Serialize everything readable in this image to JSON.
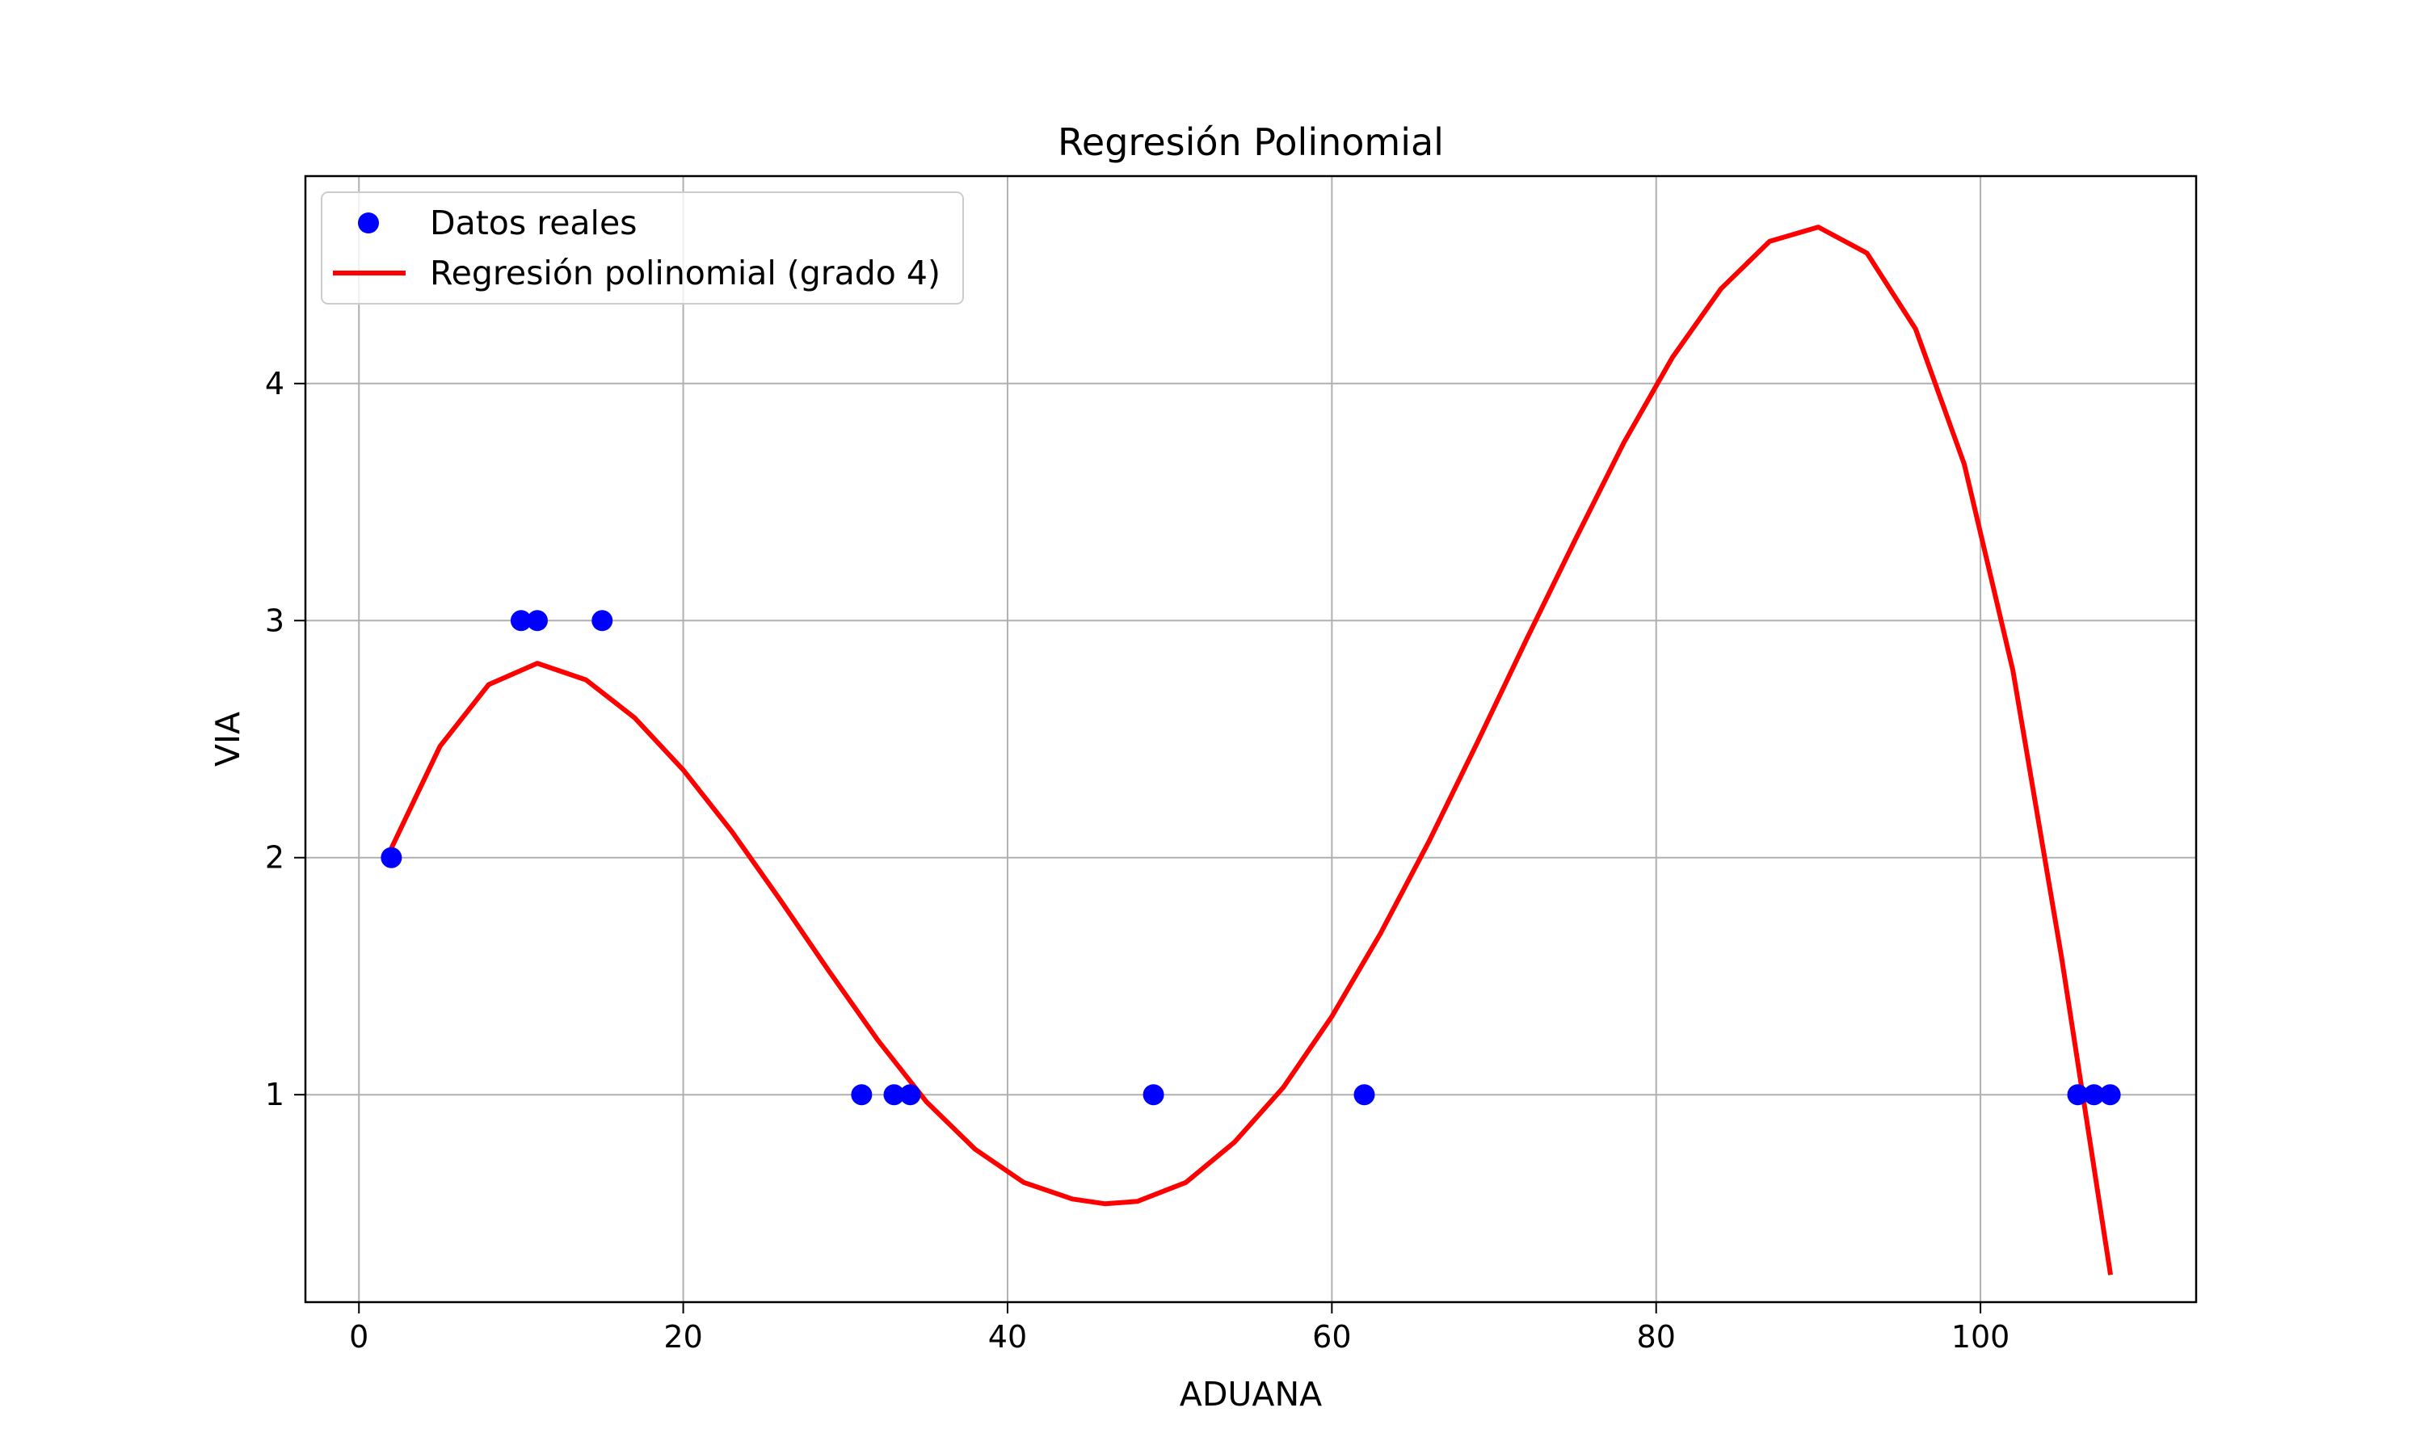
{
  "chart_data": {
    "type": "scatter",
    "title": "Regresión Polinomial",
    "xlabel": "ADUANA",
    "ylabel": "VIA",
    "xlim": [
      -3.3,
      113.3
    ],
    "ylim": [
      0.125,
      4.875
    ],
    "xticks": [
      0,
      20,
      40,
      60,
      80,
      100
    ],
    "yticks": [
      1,
      2,
      3,
      4
    ],
    "grid": true,
    "legend_position": "top-left",
    "series": [
      {
        "name": "Datos reales",
        "kind": "scatter",
        "color": "#0000ff",
        "x": [
          2,
          10,
          11,
          15,
          31,
          33,
          34,
          49,
          62,
          106,
          107,
          108
        ],
        "y": [
          2,
          3,
          3,
          3,
          1,
          1,
          1,
          1,
          1,
          1,
          1,
          1
        ]
      },
      {
        "name": "Regresión polinomial (grado 4)",
        "kind": "line",
        "color": "#ff0000",
        "x": [
          2,
          5,
          8,
          11,
          14,
          17,
          20,
          23,
          26,
          29,
          32,
          35,
          38,
          41,
          44,
          46,
          48,
          51,
          54,
          57,
          60,
          63,
          66,
          69,
          72,
          75,
          78,
          81,
          84,
          87,
          90,
          93,
          96,
          99,
          102,
          105,
          108
        ],
        "y": [
          2.04,
          2.47,
          2.73,
          2.82,
          2.75,
          2.59,
          2.37,
          2.11,
          1.82,
          1.52,
          1.23,
          0.97,
          0.77,
          0.63,
          0.56,
          0.54,
          0.55,
          0.63,
          0.8,
          1.03,
          1.33,
          1.68,
          2.07,
          2.49,
          2.92,
          3.34,
          3.75,
          4.11,
          4.4,
          4.6,
          4.66,
          4.55,
          4.23,
          3.66,
          2.79,
          1.58,
          0.25
        ]
      }
    ]
  }
}
